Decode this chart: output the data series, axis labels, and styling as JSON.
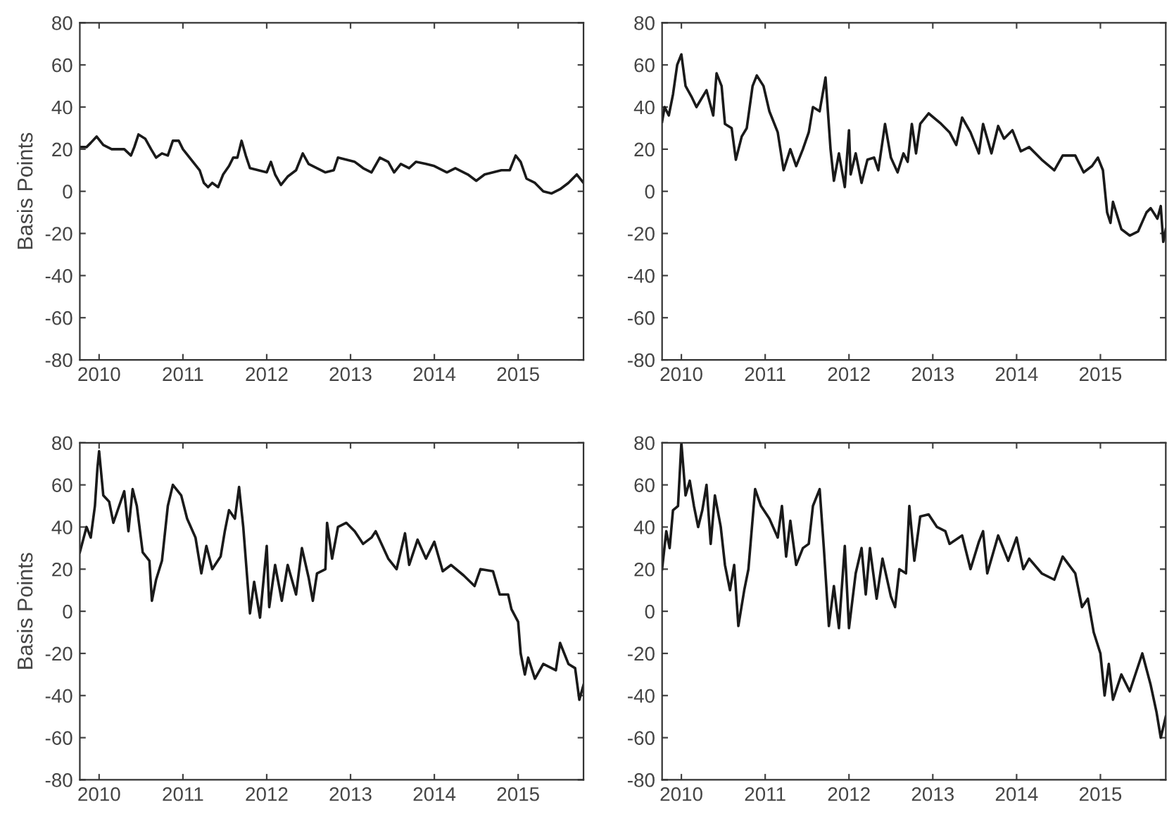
{
  "chart_data": [
    {
      "type": "line",
      "ylabel": "Basis Points",
      "xlim": [
        2009.77,
        2015.78
      ],
      "ylim": [
        -80,
        80
      ],
      "xticks": [
        2010,
        2011,
        2012,
        2013,
        2014,
        2015
      ],
      "yticks": [
        -80,
        -60,
        -40,
        -20,
        0,
        20,
        40,
        60,
        80
      ],
      "grid": false,
      "marker": "none",
      "line_style": "solid",
      "series": [
        {
          "color": "#1a1a1a",
          "x": [
            2009.77,
            2009.85,
            2009.9,
            2009.97,
            2010.05,
            2010.15,
            2010.3,
            2010.38,
            2010.42,
            2010.47,
            2010.55,
            2010.62,
            2010.68,
            2010.75,
            2010.82,
            2010.88,
            2010.95,
            2011.0,
            2011.1,
            2011.2,
            2011.25,
            2011.3,
            2011.35,
            2011.42,
            2011.48,
            2011.55,
            2011.6,
            2011.65,
            2011.7,
            2011.75,
            2011.8,
            2011.9,
            2012.0,
            2012.05,
            2012.1,
            2012.17,
            2012.25,
            2012.35,
            2012.43,
            2012.5,
            2012.6,
            2012.7,
            2012.8,
            2012.85,
            2012.95,
            2013.05,
            2013.15,
            2013.25,
            2013.35,
            2013.45,
            2013.52,
            2013.6,
            2013.7,
            2013.78,
            2013.9,
            2014.0,
            2014.15,
            2014.25,
            2014.4,
            2014.5,
            2014.6,
            2014.8,
            2014.9,
            2014.97,
            2015.03,
            2015.1,
            2015.2,
            2015.3,
            2015.4,
            2015.5,
            2015.6,
            2015.7,
            2015.78
          ],
          "values": [
            21,
            21,
            23,
            26,
            22,
            20,
            20,
            17,
            21,
            27,
            25,
            20,
            16,
            18,
            17,
            24,
            24,
            20,
            15,
            10,
            4,
            2,
            4,
            2,
            8,
            12,
            16,
            16,
            24,
            17,
            11,
            10,
            9,
            14,
            8,
            3,
            7,
            10,
            18,
            13,
            11,
            9,
            10,
            16,
            15,
            14,
            11,
            9,
            16,
            14,
            9,
            13,
            11,
            14,
            13,
            12,
            9,
            11,
            8,
            5,
            8,
            10,
            10,
            17,
            14,
            6,
            4,
            0,
            -1,
            1,
            4,
            8,
            4
          ]
        }
      ]
    },
    {
      "type": "line",
      "xlim": [
        2009.77,
        2015.78
      ],
      "ylim": [
        -80,
        80
      ],
      "xticks": [
        2010,
        2011,
        2012,
        2013,
        2014,
        2015
      ],
      "yticks": [
        -80,
        -60,
        -40,
        -20,
        0,
        20,
        40,
        60,
        80
      ],
      "grid": false,
      "marker": "none",
      "line_style": "solid",
      "series": [
        {
          "color": "#1a1a1a",
          "x": [
            2009.77,
            2009.8,
            2009.85,
            2009.9,
            2009.95,
            2010.0,
            2010.05,
            2010.12,
            2010.18,
            2010.3,
            2010.38,
            2010.42,
            2010.48,
            2010.52,
            2010.6,
            2010.65,
            2010.72,
            2010.78,
            2010.85,
            2010.9,
            2010.98,
            2011.05,
            2011.15,
            2011.22,
            2011.3,
            2011.37,
            2011.45,
            2011.52,
            2011.57,
            2011.65,
            2011.72,
            2011.78,
            2011.82,
            2011.88,
            2011.95,
            2012.0,
            2012.02,
            2012.08,
            2012.15,
            2012.22,
            2012.3,
            2012.35,
            2012.43,
            2012.5,
            2012.58,
            2012.65,
            2012.7,
            2012.75,
            2012.8,
            2012.85,
            2012.95,
            2013.1,
            2013.2,
            2013.28,
            2013.35,
            2013.45,
            2013.55,
            2013.6,
            2013.7,
            2013.78,
            2013.85,
            2013.95,
            2014.05,
            2014.15,
            2014.3,
            2014.45,
            2014.55,
            2014.7,
            2014.8,
            2014.9,
            2014.97,
            2015.03,
            2015.08,
            2015.12,
            2015.15,
            2015.25,
            2015.35,
            2015.45,
            2015.55,
            2015.6,
            2015.68,
            2015.72,
            2015.75,
            2015.78
          ],
          "values": [
            33,
            40,
            36,
            46,
            60,
            65,
            50,
            45,
            40,
            48,
            36,
            56,
            50,
            32,
            30,
            15,
            26,
            30,
            50,
            55,
            50,
            38,
            28,
            10,
            20,
            12,
            20,
            28,
            40,
            38,
            54,
            20,
            5,
            18,
            2,
            29,
            8,
            18,
            4,
            15,
            16,
            10,
            32,
            16,
            9,
            18,
            14,
            32,
            18,
            32,
            37,
            32,
            28,
            22,
            35,
            28,
            18,
            32,
            18,
            31,
            25,
            29,
            19,
            21,
            15,
            10,
            17,
            17,
            9,
            12,
            16,
            10,
            -10,
            -15,
            -5,
            -18,
            -21,
            -19,
            -10,
            -8,
            -13,
            -7,
            -24,
            -18
          ]
        }
      ]
    },
    {
      "type": "line",
      "ylabel": "Basis Points",
      "xlim": [
        2009.77,
        2015.78
      ],
      "ylim": [
        -80,
        80
      ],
      "xticks": [
        2010,
        2011,
        2012,
        2013,
        2014,
        2015
      ],
      "yticks": [
        -80,
        -60,
        -40,
        -20,
        0,
        20,
        40,
        60,
        80
      ],
      "grid": false,
      "marker": "none",
      "line_style": "solid",
      "series": [
        {
          "color": "#1a1a1a",
          "x": [
            2009.77,
            2009.85,
            2009.9,
            2009.95,
            2009.98,
            2010.0,
            2010.05,
            2010.12,
            2010.17,
            2010.3,
            2010.35,
            2010.4,
            2010.45,
            2010.52,
            2010.6,
            2010.63,
            2010.68,
            2010.75,
            2010.82,
            2010.88,
            2010.98,
            2011.05,
            2011.15,
            2011.22,
            2011.28,
            2011.35,
            2011.45,
            2011.5,
            2011.55,
            2011.62,
            2011.67,
            2011.72,
            2011.8,
            2011.85,
            2011.92,
            2012.0,
            2012.03,
            2012.1,
            2012.18,
            2012.25,
            2012.35,
            2012.42,
            2012.5,
            2012.55,
            2012.6,
            2012.7,
            2012.72,
            2012.78,
            2012.85,
            2012.95,
            2013.05,
            2013.15,
            2013.25,
            2013.3,
            2013.45,
            2013.55,
            2013.65,
            2013.7,
            2013.8,
            2013.9,
            2014.0,
            2014.1,
            2014.2,
            2014.35,
            2014.48,
            2014.55,
            2014.7,
            2014.78,
            2014.88,
            2014.92,
            2015.0,
            2015.03,
            2015.08,
            2015.12,
            2015.2,
            2015.3,
            2015.45,
            2015.5,
            2015.6,
            2015.68,
            2015.73,
            2015.78
          ],
          "values": [
            28,
            40,
            35,
            50,
            68,
            76,
            55,
            52,
            42,
            57,
            38,
            58,
            50,
            28,
            24,
            5,
            15,
            24,
            50,
            60,
            55,
            44,
            35,
            18,
            31,
            20,
            26,
            38,
            48,
            44,
            59,
            40,
            -1,
            14,
            -3,
            31,
            2,
            22,
            5,
            22,
            8,
            30,
            16,
            5,
            18,
            20,
            42,
            25,
            40,
            42,
            38,
            32,
            35,
            38,
            25,
            20,
            37,
            22,
            34,
            25,
            33,
            19,
            22,
            17,
            12,
            20,
            19,
            8,
            8,
            1,
            -5,
            -20,
            -30,
            -22,
            -32,
            -25,
            -28,
            -15,
            -25,
            -27,
            -42,
            -35
          ]
        }
      ]
    },
    {
      "type": "line",
      "xlim": [
        2009.77,
        2015.78
      ],
      "ylim": [
        -80,
        80
      ],
      "xticks": [
        2010,
        2011,
        2012,
        2013,
        2014,
        2015
      ],
      "yticks": [
        -80,
        -60,
        -40,
        -20,
        0,
        20,
        40,
        60,
        80
      ],
      "grid": false,
      "marker": "none",
      "line_style": "solid",
      "series": [
        {
          "color": "#1a1a1a",
          "x": [
            2009.77,
            2009.82,
            2009.86,
            2009.9,
            2009.96,
            2010.0,
            2010.05,
            2010.1,
            2010.15,
            2010.2,
            2010.25,
            2010.3,
            2010.35,
            2010.4,
            2010.47,
            2010.52,
            2010.58,
            2010.63,
            2010.68,
            2010.75,
            2010.8,
            2010.88,
            2010.95,
            2011.05,
            2011.15,
            2011.2,
            2011.25,
            2011.3,
            2011.37,
            2011.45,
            2011.52,
            2011.57,
            2011.65,
            2011.7,
            2011.76,
            2011.82,
            2011.88,
            2011.95,
            2012.0,
            2012.08,
            2012.15,
            2012.2,
            2012.25,
            2012.33,
            2012.4,
            2012.5,
            2012.55,
            2012.6,
            2012.68,
            2012.72,
            2012.78,
            2012.85,
            2012.95,
            2013.05,
            2013.15,
            2013.2,
            2013.35,
            2013.45,
            2013.55,
            2013.6,
            2013.65,
            2013.78,
            2013.9,
            2014.0,
            2014.08,
            2014.15,
            2014.3,
            2014.45,
            2014.55,
            2014.7,
            2014.78,
            2014.85,
            2014.92,
            2015.0,
            2015.05,
            2015.1,
            2015.15,
            2015.25,
            2015.35,
            2015.5,
            2015.6,
            2015.67,
            2015.72,
            2015.78
          ],
          "values": [
            20,
            38,
            30,
            48,
            50,
            80,
            55,
            62,
            50,
            40,
            48,
            60,
            32,
            55,
            40,
            22,
            10,
            22,
            -7,
            10,
            20,
            58,
            50,
            44,
            35,
            50,
            26,
            43,
            22,
            30,
            32,
            50,
            58,
            30,
            -7,
            12,
            -8,
            31,
            -8,
            18,
            30,
            8,
            30,
            6,
            25,
            7,
            2,
            20,
            18,
            50,
            24,
            45,
            46,
            40,
            38,
            32,
            36,
            20,
            33,
            38,
            18,
            36,
            24,
            35,
            20,
            25,
            18,
            15,
            26,
            18,
            2,
            6,
            -10,
            -20,
            -40,
            -25,
            -42,
            -30,
            -38,
            -20,
            -35,
            -48,
            -60,
            -50
          ]
        }
      ]
    }
  ]
}
